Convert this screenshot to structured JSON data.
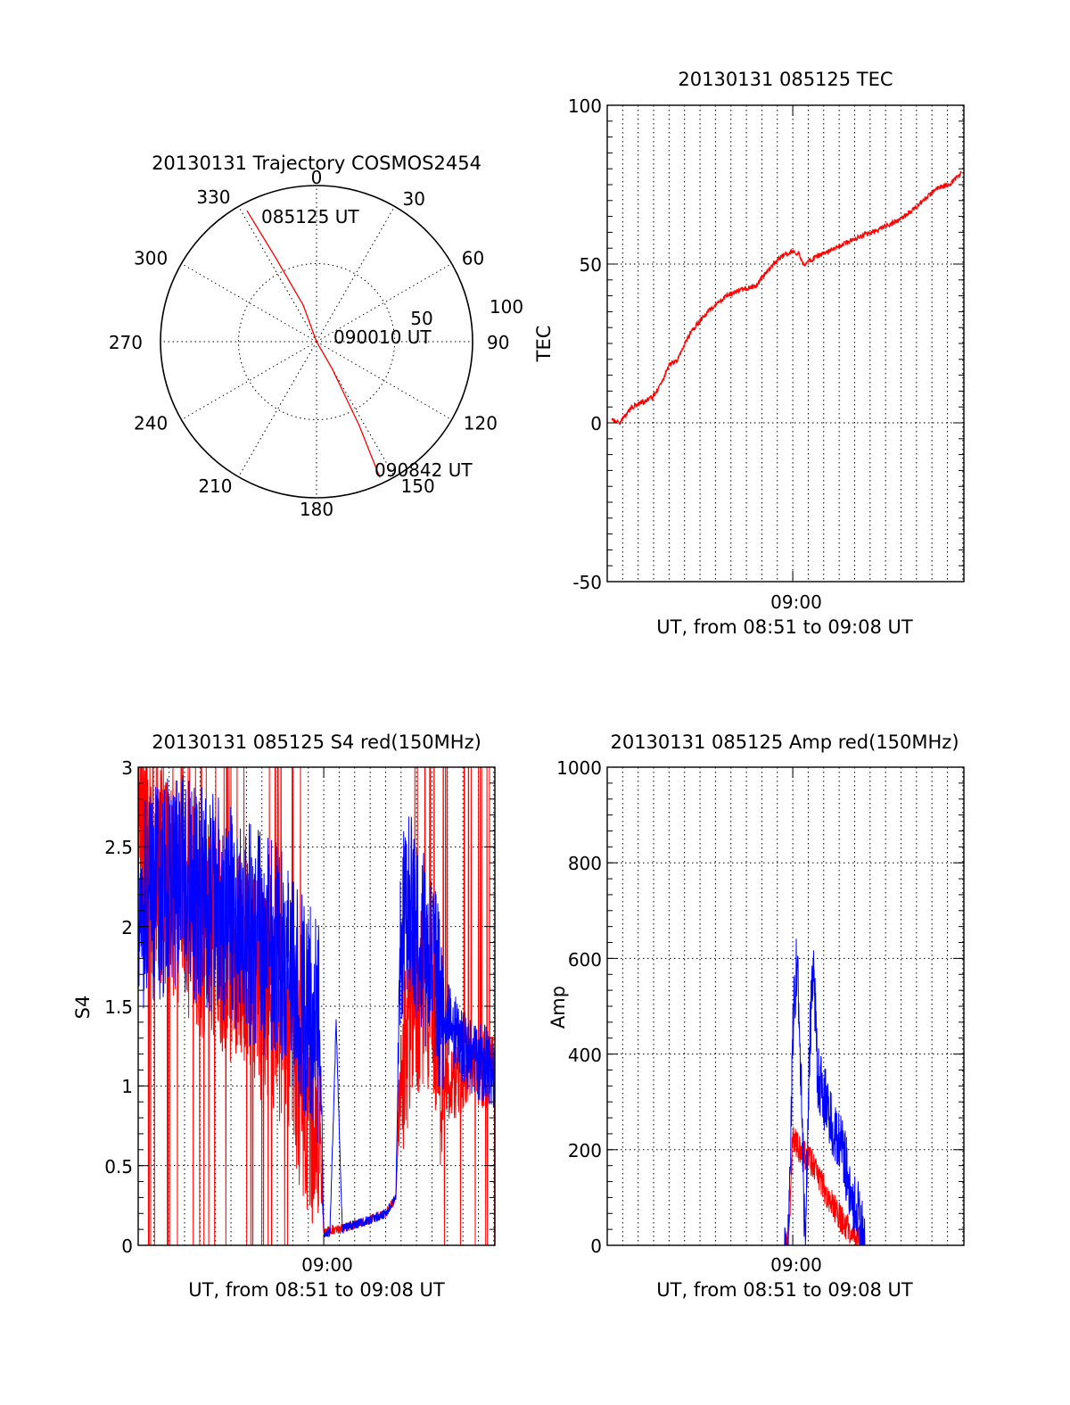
{
  "figure": {
    "colors": {
      "red": "#ff0000",
      "blue": "#0000ff",
      "axes": "#000000",
      "background": "#ffffff"
    }
  },
  "polar": {
    "title": "20130131 Trajectory COSMOS2454",
    "azimuth_labels": [
      "0",
      "30",
      "60",
      "90",
      "120",
      "150",
      "180",
      "210",
      "240",
      "270",
      "300",
      "330"
    ],
    "ring_labels": [
      "50",
      "100"
    ],
    "annotations": {
      "start": "085125 UT",
      "mid": "090010 UT",
      "end": "090842 UT"
    },
    "chart_data": {
      "type": "line",
      "coordinate_system": "polar (azimuth deg, zenith distance 0-100)",
      "series": [
        {
          "color": "#ff0000",
          "points": [
            [
              -28,
              95
            ],
            [
              -26,
              60
            ],
            [
              -20,
              25
            ],
            [
              0,
              0
            ],
            [
              150,
              20
            ],
            [
              153,
              60
            ],
            [
              155,
              96
            ]
          ]
        }
      ],
      "r_max": 100
    }
  },
  "tec": {
    "title": "20130131 085125 TEC",
    "ylabel": "TEC",
    "xlabel": "UT, from 08:51 to 09:08 UT",
    "xtick_label": "09:00",
    "yticks": [
      "100",
      "50",
      "0",
      "-50"
    ],
    "chart_data": {
      "type": "line",
      "x_unit": "minutes after 08:51",
      "xlim": [
        0,
        17.3
      ],
      "ylim": [
        -50,
        100
      ],
      "grid": "vertical dotted every 0.75 min; horizontal dotted at 0, 50",
      "series": [
        {
          "color": "#ff0000",
          "x": [
            0.2,
            0.6,
            1.2,
            2.2,
            2.6,
            3.0,
            3.4,
            4.0,
            4.6,
            5.2,
            5.8,
            6.5,
            7.2,
            7.8,
            8.2,
            8.6,
            9.0,
            9.3,
            9.5,
            11.0,
            12.4,
            12.9,
            13.5,
            14.2,
            15.0,
            16.0,
            16.6,
            17.2
          ],
          "y": [
            1,
            0,
            5,
            8,
            12,
            18,
            20,
            28,
            33,
            37,
            40,
            42,
            43,
            48,
            51,
            53,
            54,
            53,
            50,
            55,
            59,
            60,
            62,
            64,
            68,
            74,
            75,
            79
          ]
        }
      ]
    }
  },
  "s4": {
    "title": "20130131 085125 S4 red(150MHz)",
    "ylabel": "S4",
    "xlabel": "UT, from 08:51 to 09:08 UT",
    "xtick_label": "09:00",
    "yticks": [
      "3",
      "2.5",
      "2",
      "1.5",
      "1",
      "0.5",
      "0"
    ],
    "chart_data": {
      "type": "line",
      "x_unit": "minutes after 08:51",
      "xlim": [
        0,
        17.3
      ],
      "ylim": [
        0,
        3
      ],
      "grid": "vertical dotted every 0.75 min; horizontal dotted every 0.5",
      "series": [
        {
          "color": "#ff0000",
          "x": [
            0,
            1,
            2,
            3,
            4,
            5,
            6,
            7,
            7.5,
            8.0,
            8.5,
            8.8,
            9.0,
            9.3,
            9.8,
            10.2,
            11.0,
            12.0,
            12.5,
            12.7,
            13.0,
            13.5,
            14.0,
            14.3,
            14.6,
            15.0,
            16.0,
            17.3
          ],
          "y": [
            2.5,
            2.3,
            2.2,
            2.0,
            1.9,
            1.8,
            1.6,
            1.4,
            1.2,
            1.0,
            0.8,
            0.7,
            0.08,
            0.1,
            0.1,
            0.12,
            0.15,
            0.2,
            0.3,
            1.0,
            1.3,
            1.5,
            1.6,
            1.4,
            1.1,
            1.0,
            1.1,
            1.1
          ]
        },
        {
          "color": "#0000ff",
          "x": [
            0,
            1,
            2,
            3,
            4,
            5,
            6,
            7,
            7.5,
            8.0,
            8.5,
            8.8,
            9.0,
            9.3,
            9.6,
            9.9,
            10.2,
            11.0,
            12.0,
            12.5,
            12.7,
            13.0,
            13.5,
            14.0,
            14.5,
            15.0,
            16.0,
            17.3
          ],
          "y": [
            2.1,
            2.2,
            2.3,
            2.2,
            2.1,
            2.0,
            1.9,
            1.8,
            1.6,
            1.5,
            1.4,
            1.3,
            0.08,
            0.08,
            1.4,
            0.1,
            0.12,
            0.15,
            0.2,
            0.3,
            1.8,
            2.2,
            2.0,
            1.8,
            1.6,
            1.4,
            1.2,
            1.1
          ]
        }
      ]
    }
  },
  "amp": {
    "title": "20130131 085125 Amp red(150MHz)",
    "ylabel": "Amp",
    "xlabel": "UT, from 08:51 to 09:08 UT",
    "xtick_label": "09:00",
    "yticks": [
      "1000",
      "800",
      "600",
      "400",
      "200",
      "0"
    ],
    "chart_data": {
      "type": "line",
      "x_unit": "minutes after 08:51",
      "xlim": [
        0,
        17.3
      ],
      "ylim": [
        0,
        1000
      ],
      "grid": "vertical dotted every 0.75 min; horizontal dotted every 200",
      "series": [
        {
          "color": "#ff0000",
          "x": [
            0,
            8.6,
            8.8,
            9.0,
            9.2,
            9.5,
            9.8,
            10.2,
            10.6,
            11.0,
            11.4,
            11.8,
            12.2,
            12.5,
            17.3
          ],
          "y": [
            0,
            0,
            10,
            230,
            210,
            190,
            180,
            150,
            110,
            80,
            50,
            30,
            10,
            0,
            0
          ]
        },
        {
          "color": "#0000ff",
          "x": [
            0,
            8.6,
            8.8,
            9.0,
            9.2,
            9.4,
            9.6,
            9.8,
            10.0,
            10.2,
            10.6,
            11.0,
            11.4,
            11.8,
            12.2,
            12.5,
            17.3
          ],
          "y": [
            0,
            0,
            20,
            450,
            600,
            350,
            0,
            400,
            600,
            350,
            300,
            230,
            200,
            120,
            60,
            0,
            0
          ]
        }
      ]
    }
  }
}
